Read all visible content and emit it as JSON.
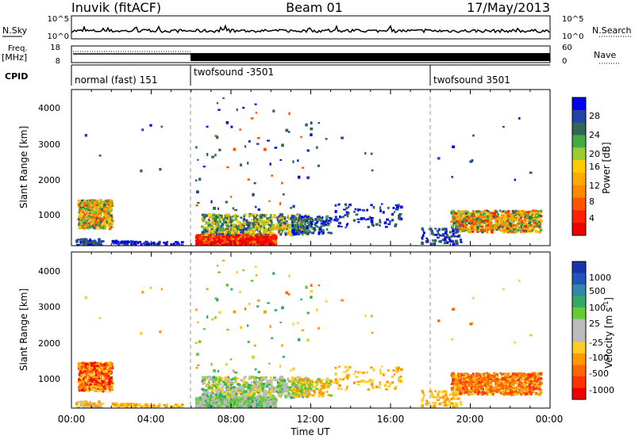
{
  "header": {
    "radar": "Inuvik (fitACF)",
    "beam": "Beam 01",
    "date": "17/May/2013"
  },
  "noise_panel": {
    "left_label": "N.Sky",
    "left_ticks": [
      "10^5",
      "10^0"
    ],
    "right_label": "N.Search",
    "right_ticks": [
      "10^5",
      "10^0"
    ]
  },
  "freq_panel": {
    "left_label_1": "Freq.",
    "left_label_2": "[MHz]",
    "left_ticks": [
      "18",
      "8"
    ],
    "right_label": "Nave",
    "right_ticks": [
      "60",
      "0"
    ]
  },
  "cpid_panel": {
    "label": "CPID",
    "segments": [
      {
        "text": "normal (fast) 151",
        "start": 0
      },
      {
        "text": "twofsound -3501",
        "start": 6
      },
      {
        "text": "twofsound 3501",
        "start": 18
      }
    ]
  },
  "power_panel": {
    "ylabel": "Slant Range [km]",
    "yticks": [
      "4000",
      "3000",
      "2000",
      "1000"
    ],
    "colorbar_label": "Power [dB]",
    "colorbar_ticks": [
      "28",
      "24",
      "20",
      "16",
      "12",
      "8",
      "4"
    ],
    "colors": [
      "#0000ee",
      "#2244aa",
      "#336655",
      "#44aa44",
      "#99cc33",
      "#ffcc00",
      "#ffaa00",
      "#ff8800",
      "#ff5500",
      "#ff2200",
      "#ee0000"
    ]
  },
  "velocity_panel": {
    "ylabel": "Slant Range [km]",
    "yticks": [
      "4000",
      "3000",
      "2000",
      "1000"
    ],
    "colorbar_label": "Velocity [m s",
    "colorbar_exp": "-1",
    "colorbar_ticks": [
      "1000",
      "500",
      "100",
      "25",
      "-25",
      "-100",
      "-500",
      "-1000"
    ],
    "colors": [
      "#1a33aa",
      "#2255bb",
      "#3388aa",
      "#33aa66",
      "#66cc33",
      "#bbbbbb",
      "#bbbbbb",
      "#ffcc22",
      "#ff9900",
      "#ff6600",
      "#ff3300",
      "#ee0000"
    ]
  },
  "xaxis": {
    "ticks": [
      "00:00",
      "04:00",
      "08:00",
      "12:00",
      "16:00",
      "20:00",
      "00:00"
    ],
    "label": "Time UT"
  },
  "chart_data": {
    "type": "heatmap",
    "x_range_hours": [
      0,
      24
    ],
    "y_range_km": [
      180,
      4600
    ],
    "mode_changes_hours": [
      6,
      18
    ],
    "power_regions": [
      {
        "t": [
          0.3,
          2.0
        ],
        "r": [
          700,
          1500
        ],
        "level": "mid-high"
      },
      {
        "t": [
          6.2,
          10.2
        ],
        "r": [
          200,
          550
        ],
        "level": "high"
      },
      {
        "t": [
          6.5,
          13.0
        ],
        "r": [
          550,
          1100
        ],
        "level": "mid"
      },
      {
        "t": [
          19.0,
          23.5
        ],
        "r": [
          600,
          1200
        ],
        "level": "mid"
      }
    ]
  }
}
